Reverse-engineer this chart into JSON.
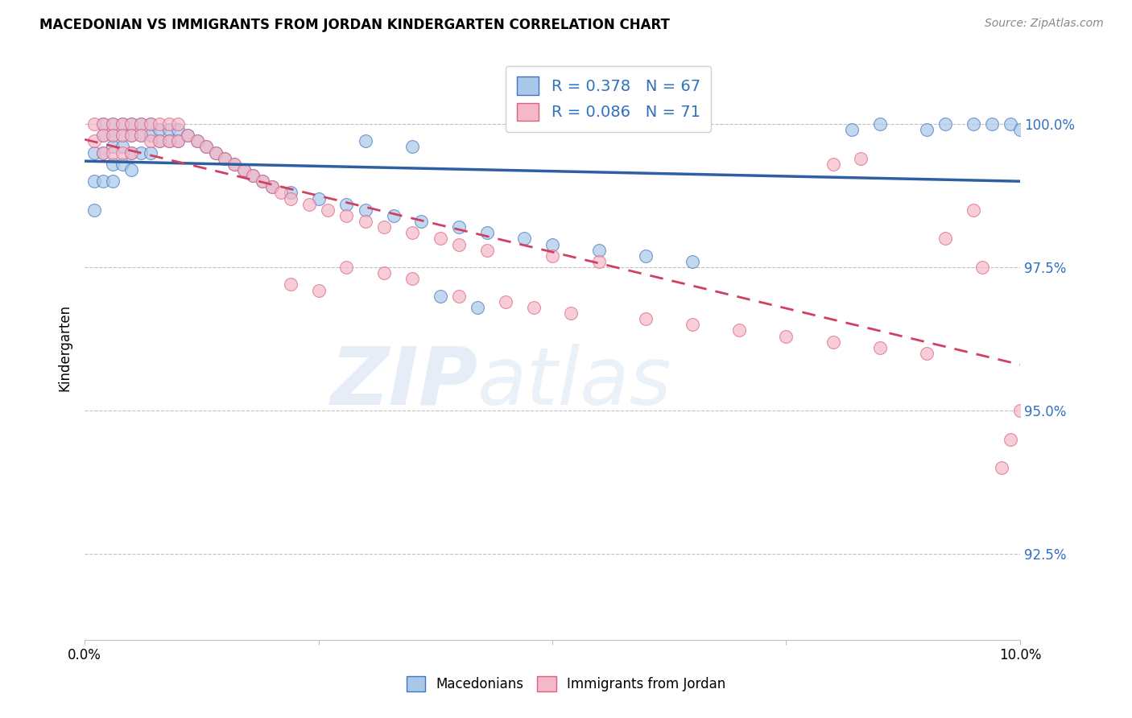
{
  "title": "MACEDONIAN VS IMMIGRANTS FROM JORDAN KINDERGARTEN CORRELATION CHART",
  "source": "Source: ZipAtlas.com",
  "ylabel": "Kindergarten",
  "ytick_labels": [
    "92.5%",
    "95.0%",
    "97.5%",
    "100.0%"
  ],
  "ytick_values": [
    0.925,
    0.95,
    0.975,
    1.0
  ],
  "xmin": 0.0,
  "xmax": 0.1,
  "ymin": 0.91,
  "ymax": 1.012,
  "legend_blue_label": "R = 0.378   N = 67",
  "legend_pink_label": "R = 0.086   N = 71",
  "legend_macedonians": "Macedonians",
  "legend_jordan": "Immigrants from Jordan",
  "blue_face_color": "#a8c8e8",
  "pink_face_color": "#f4b8c8",
  "blue_edge_color": "#4472c4",
  "pink_edge_color": "#e06080",
  "blue_line_color": "#2e5fa3",
  "pink_line_color": "#d04060",
  "watermark_zip": "ZIP",
  "watermark_atlas": "atlas",
  "blue_scatter_x": [
    0.001,
    0.001,
    0.001,
    0.002,
    0.002,
    0.002,
    0.002,
    0.003,
    0.003,
    0.003,
    0.003,
    0.003,
    0.004,
    0.004,
    0.004,
    0.004,
    0.005,
    0.005,
    0.005,
    0.005,
    0.006,
    0.006,
    0.006,
    0.007,
    0.007,
    0.007,
    0.008,
    0.008,
    0.009,
    0.009,
    0.01,
    0.01,
    0.011,
    0.012,
    0.013,
    0.014,
    0.015,
    0.016,
    0.017,
    0.018,
    0.019,
    0.02,
    0.022,
    0.025,
    0.028,
    0.03,
    0.033,
    0.036,
    0.04,
    0.043,
    0.047,
    0.05,
    0.03,
    0.035,
    0.038,
    0.042,
    0.055,
    0.06,
    0.065,
    0.082,
    0.085,
    0.09,
    0.092,
    0.095,
    0.097,
    0.099,
    0.1
  ],
  "blue_scatter_y": [
    0.995,
    0.99,
    0.985,
    1.0,
    0.998,
    0.995,
    0.99,
    1.0,
    0.998,
    0.996,
    0.993,
    0.99,
    1.0,
    0.998,
    0.996,
    0.993,
    1.0,
    0.998,
    0.995,
    0.992,
    1.0,
    0.998,
    0.995,
    1.0,
    0.998,
    0.995,
    0.999,
    0.997,
    0.999,
    0.997,
    0.999,
    0.997,
    0.998,
    0.997,
    0.996,
    0.995,
    0.994,
    0.993,
    0.992,
    0.991,
    0.99,
    0.989,
    0.988,
    0.987,
    0.986,
    0.985,
    0.984,
    0.983,
    0.982,
    0.981,
    0.98,
    0.979,
    0.997,
    0.996,
    0.97,
    0.968,
    0.978,
    0.977,
    0.976,
    0.999,
    1.0,
    0.999,
    1.0,
    1.0,
    1.0,
    1.0,
    0.999
  ],
  "pink_scatter_x": [
    0.001,
    0.001,
    0.002,
    0.002,
    0.002,
    0.003,
    0.003,
    0.003,
    0.004,
    0.004,
    0.004,
    0.005,
    0.005,
    0.005,
    0.006,
    0.006,
    0.007,
    0.007,
    0.008,
    0.008,
    0.009,
    0.009,
    0.01,
    0.01,
    0.011,
    0.012,
    0.013,
    0.014,
    0.015,
    0.016,
    0.017,
    0.018,
    0.019,
    0.02,
    0.021,
    0.022,
    0.024,
    0.026,
    0.028,
    0.03,
    0.032,
    0.035,
    0.038,
    0.04,
    0.043,
    0.05,
    0.055,
    0.028,
    0.032,
    0.035,
    0.022,
    0.025,
    0.04,
    0.045,
    0.048,
    0.052,
    0.06,
    0.065,
    0.07,
    0.075,
    0.08,
    0.085,
    0.09,
    0.092,
    0.095,
    0.096,
    0.098,
    0.099,
    0.1,
    0.08,
    0.083
  ],
  "pink_scatter_y": [
    1.0,
    0.997,
    1.0,
    0.998,
    0.995,
    1.0,
    0.998,
    0.995,
    1.0,
    0.998,
    0.995,
    1.0,
    0.998,
    0.995,
    1.0,
    0.998,
    1.0,
    0.997,
    1.0,
    0.997,
    1.0,
    0.997,
    1.0,
    0.997,
    0.998,
    0.997,
    0.996,
    0.995,
    0.994,
    0.993,
    0.992,
    0.991,
    0.99,
    0.989,
    0.988,
    0.987,
    0.986,
    0.985,
    0.984,
    0.983,
    0.982,
    0.981,
    0.98,
    0.979,
    0.978,
    0.977,
    0.976,
    0.975,
    0.974,
    0.973,
    0.972,
    0.971,
    0.97,
    0.969,
    0.968,
    0.967,
    0.966,
    0.965,
    0.964,
    0.963,
    0.962,
    0.961,
    0.96,
    0.98,
    0.985,
    0.975,
    0.94,
    0.945,
    0.95,
    0.993,
    0.994
  ]
}
